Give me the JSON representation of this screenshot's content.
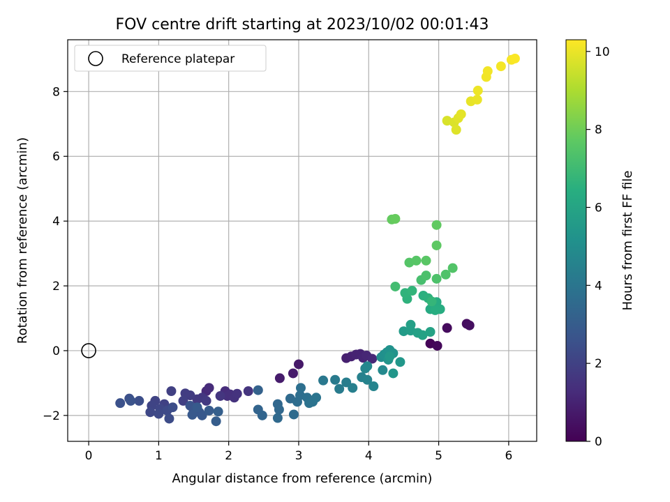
{
  "chart_data": {
    "type": "scatter",
    "title": "FOV centre drift starting at 2023/10/02 00:01:43",
    "xlabel": "Angular distance from reference (arcmin)",
    "ylabel": "Rotation from reference (arcmin)",
    "xlim": [
      -0.3,
      6.4
    ],
    "ylim": [
      -2.8,
      9.6
    ],
    "xticks": [
      0,
      1,
      2,
      3,
      4,
      5,
      6
    ],
    "yticks": [
      -2,
      0,
      2,
      4,
      6,
      8
    ],
    "grid": true,
    "legend": {
      "placement": "top-left",
      "entries": [
        "Reference platepar"
      ]
    },
    "reference_point": {
      "x": 0,
      "y": 0
    },
    "colormap": "viridis",
    "colorbar": {
      "label": "Hours from first FF file",
      "min": 0,
      "max": 10.3,
      "ticks": [
        0,
        2,
        4,
        6,
        8,
        10
      ]
    },
    "points": [
      {
        "x": 4.88,
        "y": 0.22,
        "c": 0.1
      },
      {
        "x": 4.98,
        "y": 0.15,
        "c": 0.2
      },
      {
        "x": 5.12,
        "y": 0.7,
        "c": 0.3
      },
      {
        "x": 5.4,
        "y": 0.83,
        "c": 0.35
      },
      {
        "x": 5.44,
        "y": 0.78,
        "c": 0.4
      },
      {
        "x": 3.0,
        "y": -0.42,
        "c": 0.7
      },
      {
        "x": 2.92,
        "y": -0.7,
        "c": 0.75
      },
      {
        "x": 2.73,
        "y": -0.85,
        "c": 0.8
      },
      {
        "x": 3.68,
        "y": -0.23,
        "c": 0.9
      },
      {
        "x": 3.75,
        "y": -0.18,
        "c": 0.95
      },
      {
        "x": 3.82,
        "y": -0.12,
        "c": 1.0
      },
      {
        "x": 3.88,
        "y": -0.1,
        "c": 1.0
      },
      {
        "x": 3.92,
        "y": -0.22,
        "c": 1.05
      },
      {
        "x": 3.97,
        "y": -0.15,
        "c": 1.1
      },
      {
        "x": 4.05,
        "y": -0.25,
        "c": 1.15
      },
      {
        "x": 1.68,
        "y": -1.25,
        "c": 1.2
      },
      {
        "x": 1.72,
        "y": -1.15,
        "c": 1.25
      },
      {
        "x": 1.95,
        "y": -1.25,
        "c": 1.3
      },
      {
        "x": 1.98,
        "y": -1.4,
        "c": 1.35
      },
      {
        "x": 2.02,
        "y": -1.35,
        "c": 1.4
      },
      {
        "x": 2.08,
        "y": -1.45,
        "c": 1.45
      },
      {
        "x": 2.12,
        "y": -1.33,
        "c": 1.5
      },
      {
        "x": 2.28,
        "y": -1.25,
        "c": 1.55
      },
      {
        "x": 1.88,
        "y": -1.4,
        "c": 1.6
      },
      {
        "x": 1.62,
        "y": -1.45,
        "c": 1.65
      },
      {
        "x": 1.55,
        "y": -1.5,
        "c": 1.7
      },
      {
        "x": 1.68,
        "y": -1.55,
        "c": 1.75
      },
      {
        "x": 1.45,
        "y": -1.38,
        "c": 1.8
      },
      {
        "x": 1.38,
        "y": -1.32,
        "c": 1.85
      },
      {
        "x": 1.35,
        "y": -1.55,
        "c": 1.9
      },
      {
        "x": 1.18,
        "y": -1.25,
        "c": 1.95
      },
      {
        "x": 1.08,
        "y": -1.65,
        "c": 2.0
      },
      {
        "x": 0.95,
        "y": -1.55,
        "c": 2.05
      },
      {
        "x": 0.9,
        "y": -1.7,
        "c": 2.1
      },
      {
        "x": 1.02,
        "y": -1.8,
        "c": 2.15
      },
      {
        "x": 0.88,
        "y": -1.9,
        "c": 2.2
      },
      {
        "x": 1.0,
        "y": -1.95,
        "c": 2.25
      },
      {
        "x": 1.12,
        "y": -1.85,
        "c": 2.3
      },
      {
        "x": 1.15,
        "y": -2.1,
        "c": 2.35
      },
      {
        "x": 1.2,
        "y": -1.75,
        "c": 2.4
      },
      {
        "x": 0.72,
        "y": -1.55,
        "c": 2.45
      },
      {
        "x": 0.58,
        "y": -1.48,
        "c": 2.5
      },
      {
        "x": 0.45,
        "y": -1.62,
        "c": 2.55
      },
      {
        "x": 0.6,
        "y": -1.55,
        "c": 2.6
      },
      {
        "x": 1.45,
        "y": -1.7,
        "c": 2.65
      },
      {
        "x": 1.5,
        "y": -1.85,
        "c": 2.7
      },
      {
        "x": 1.58,
        "y": -1.9,
        "c": 2.75
      },
      {
        "x": 1.62,
        "y": -2.0,
        "c": 2.8
      },
      {
        "x": 1.48,
        "y": -1.98,
        "c": 2.85
      },
      {
        "x": 1.55,
        "y": -1.75,
        "c": 2.9
      },
      {
        "x": 1.72,
        "y": -1.85,
        "c": 2.95
      },
      {
        "x": 1.82,
        "y": -2.18,
        "c": 3.0
      },
      {
        "x": 1.85,
        "y": -1.88,
        "c": 3.1
      },
      {
        "x": 2.42,
        "y": -1.22,
        "c": 3.2
      },
      {
        "x": 2.42,
        "y": -1.82,
        "c": 3.3
      },
      {
        "x": 2.48,
        "y": -2.0,
        "c": 3.35
      },
      {
        "x": 2.7,
        "y": -1.65,
        "c": 3.4
      },
      {
        "x": 2.72,
        "y": -1.82,
        "c": 3.45
      },
      {
        "x": 2.7,
        "y": -2.08,
        "c": 3.5
      },
      {
        "x": 2.88,
        "y": -1.48,
        "c": 3.55
      },
      {
        "x": 2.93,
        "y": -1.97,
        "c": 3.6
      },
      {
        "x": 2.98,
        "y": -1.58,
        "c": 3.65
      },
      {
        "x": 3.02,
        "y": -1.38,
        "c": 3.7
      },
      {
        "x": 3.03,
        "y": -1.15,
        "c": 3.75
      },
      {
        "x": 3.12,
        "y": -1.45,
        "c": 3.8
      },
      {
        "x": 3.15,
        "y": -1.62,
        "c": 3.85
      },
      {
        "x": 3.2,
        "y": -1.58,
        "c": 3.9
      },
      {
        "x": 3.25,
        "y": -1.45,
        "c": 3.95
      },
      {
        "x": 3.35,
        "y": -0.92,
        "c": 4.1
      },
      {
        "x": 3.52,
        "y": -0.9,
        "c": 4.2
      },
      {
        "x": 3.58,
        "y": -1.18,
        "c": 4.25
      },
      {
        "x": 3.68,
        "y": -0.98,
        "c": 4.3
      },
      {
        "x": 3.77,
        "y": -1.15,
        "c": 4.4
      },
      {
        "x": 3.9,
        "y": -0.82,
        "c": 4.5
      },
      {
        "x": 3.98,
        "y": -0.9,
        "c": 4.55
      },
      {
        "x": 4.07,
        "y": -1.1,
        "c": 4.6
      },
      {
        "x": 3.95,
        "y": -0.55,
        "c": 4.7
      },
      {
        "x": 3.98,
        "y": -0.48,
        "c": 4.75
      },
      {
        "x": 4.2,
        "y": -0.6,
        "c": 4.8
      },
      {
        "x": 4.18,
        "y": -0.2,
        "c": 5.0
      },
      {
        "x": 4.22,
        "y": -0.12,
        "c": 5.1
      },
      {
        "x": 4.26,
        "y": -0.05,
        "c": 5.15
      },
      {
        "x": 4.3,
        "y": 0.02,
        "c": 5.2
      },
      {
        "x": 4.35,
        "y": -0.08,
        "c": 5.25
      },
      {
        "x": 4.28,
        "y": -0.28,
        "c": 5.3
      },
      {
        "x": 4.35,
        "y": -0.7,
        "c": 5.35
      },
      {
        "x": 4.45,
        "y": -0.35,
        "c": 5.4
      },
      {
        "x": 4.3,
        "y": -0.18,
        "c": 5.45
      },
      {
        "x": 4.5,
        "y": 0.6,
        "c": 5.6
      },
      {
        "x": 4.6,
        "y": 0.62,
        "c": 5.7
      },
      {
        "x": 4.6,
        "y": 0.8,
        "c": 5.75
      },
      {
        "x": 4.7,
        "y": 0.55,
        "c": 5.8
      },
      {
        "x": 4.77,
        "y": 0.48,
        "c": 5.85
      },
      {
        "x": 4.88,
        "y": 0.58,
        "c": 5.9
      },
      {
        "x": 4.88,
        "y": 1.28,
        "c": 6.2
      },
      {
        "x": 4.92,
        "y": 1.35,
        "c": 6.25
      },
      {
        "x": 4.97,
        "y": 1.5,
        "c": 6.3
      },
      {
        "x": 5.02,
        "y": 1.28,
        "c": 6.35
      },
      {
        "x": 4.95,
        "y": 1.25,
        "c": 6.4
      },
      {
        "x": 4.78,
        "y": 1.7,
        "c": 6.5
      },
      {
        "x": 4.85,
        "y": 1.62,
        "c": 6.55
      },
      {
        "x": 4.55,
        "y": 1.6,
        "c": 6.6
      },
      {
        "x": 4.52,
        "y": 1.78,
        "c": 6.65
      },
      {
        "x": 4.62,
        "y": 1.85,
        "c": 6.7
      },
      {
        "x": 4.9,
        "y": 1.52,
        "c": 6.75
      },
      {
        "x": 4.38,
        "y": 1.98,
        "c": 7.1
      },
      {
        "x": 4.75,
        "y": 2.18,
        "c": 7.2
      },
      {
        "x": 4.82,
        "y": 2.32,
        "c": 7.3
      },
      {
        "x": 4.97,
        "y": 2.22,
        "c": 7.35
      },
      {
        "x": 5.1,
        "y": 2.35,
        "c": 7.4
      },
      {
        "x": 5.2,
        "y": 2.55,
        "c": 7.45
      },
      {
        "x": 4.58,
        "y": 2.72,
        "c": 7.5
      },
      {
        "x": 4.68,
        "y": 2.78,
        "c": 7.55
      },
      {
        "x": 4.82,
        "y": 2.78,
        "c": 7.6
      },
      {
        "x": 4.97,
        "y": 3.25,
        "c": 7.7
      },
      {
        "x": 4.97,
        "y": 3.88,
        "c": 7.75
      },
      {
        "x": 4.33,
        "y": 4.05,
        "c": 7.8
      },
      {
        "x": 4.38,
        "y": 4.07,
        "c": 7.85
      },
      {
        "x": 5.12,
        "y": 7.1,
        "c": 9.7
      },
      {
        "x": 5.22,
        "y": 7.05,
        "c": 9.75
      },
      {
        "x": 5.25,
        "y": 6.82,
        "c": 9.8
      },
      {
        "x": 5.28,
        "y": 7.18,
        "c": 9.85
      },
      {
        "x": 5.32,
        "y": 7.3,
        "c": 9.9
      },
      {
        "x": 5.46,
        "y": 7.7,
        "c": 9.95
      },
      {
        "x": 5.55,
        "y": 7.75,
        "c": 10.0
      },
      {
        "x": 5.56,
        "y": 8.03,
        "c": 10.05
      },
      {
        "x": 5.68,
        "y": 8.45,
        "c": 10.1
      },
      {
        "x": 5.7,
        "y": 8.63,
        "c": 10.12
      },
      {
        "x": 5.89,
        "y": 8.78,
        "c": 10.15
      },
      {
        "x": 6.04,
        "y": 8.98,
        "c": 10.2
      },
      {
        "x": 6.09,
        "y": 9.02,
        "c": 10.25
      }
    ]
  }
}
